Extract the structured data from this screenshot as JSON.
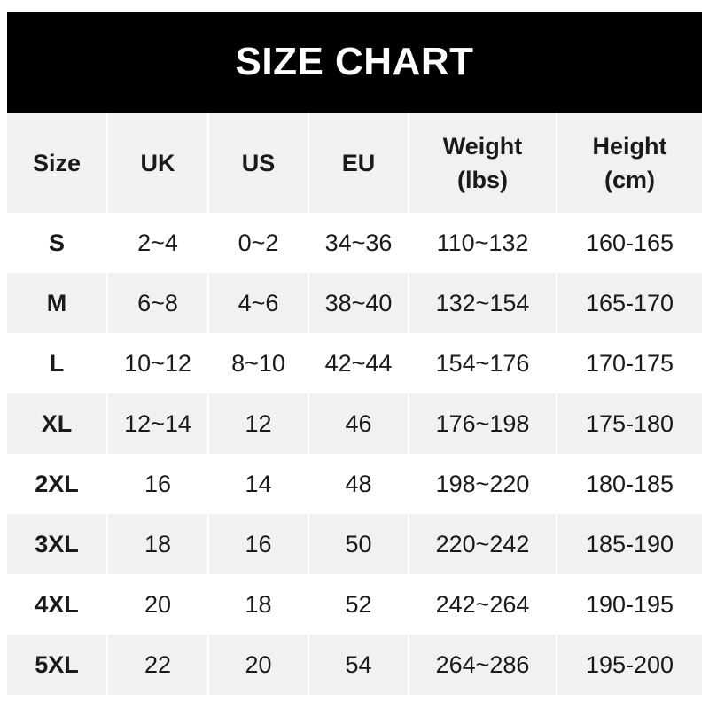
{
  "title": "SIZE CHART",
  "headers": [
    "Size",
    "UK",
    "US",
    "EU",
    "Weight\n(lbs)",
    "Height\n(cm)"
  ],
  "header_lines": [
    [
      "Size"
    ],
    [
      "UK"
    ],
    [
      "US"
    ],
    [
      "EU"
    ],
    [
      "Weight",
      "(lbs)"
    ],
    [
      "Height",
      "(cm)"
    ]
  ],
  "rows": [
    [
      "S",
      "2~4",
      "0~2",
      "34~36",
      "110~132",
      "160-165"
    ],
    [
      "M",
      "6~8",
      "4~6",
      "38~40",
      "132~154",
      "165-170"
    ],
    [
      "L",
      "10~12",
      "8~10",
      "42~44",
      "154~176",
      "170-175"
    ],
    [
      "XL",
      "12~14",
      "12",
      "46",
      "176~198",
      "175-180"
    ],
    [
      "2XL",
      "16",
      "14",
      "48",
      "198~220",
      "180-185"
    ],
    [
      "3XL",
      "18",
      "16",
      "50",
      "220~242",
      "185-190"
    ],
    [
      "4XL",
      "20",
      "18",
      "52",
      "242~264",
      "190-195"
    ],
    [
      "5XL",
      "22",
      "20",
      "54",
      "264~286",
      "195-200"
    ]
  ],
  "colors": {
    "title_bg": "#000000",
    "stripe": "#f1f1f1",
    "text": "#1a1a1a"
  }
}
